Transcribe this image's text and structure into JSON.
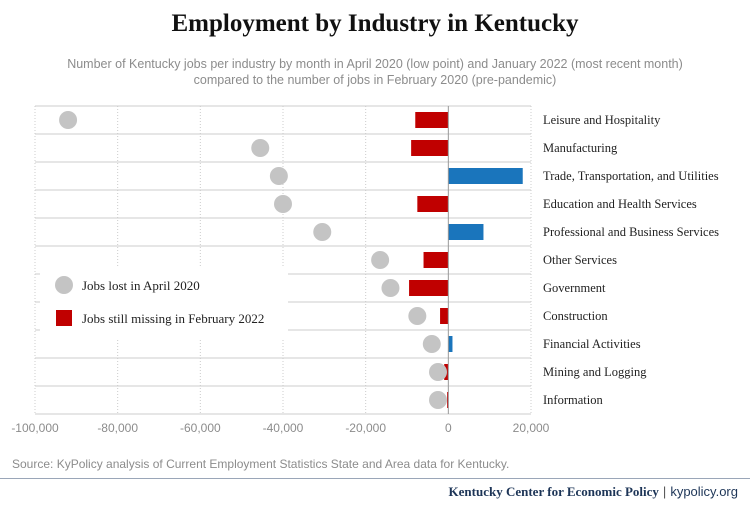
{
  "title": "Employment by Industry in Kentucky",
  "subtitle_line1": "Number of Kentucky jobs per industry by month in April 2020 (low point) and January 2022 (most recent month)",
  "subtitle_line2": "compared to the number of jobs in February 2020 (pre-pandemic)",
  "source": "Source: KyPolicy analysis of Current Employment Statistics State and Area data for Kentucky.",
  "footer": {
    "org": "Kentucky Center for Economic Policy",
    "separator": "|",
    "site": "kypolicy.org"
  },
  "colors": {
    "jobs_lost": "#c4c4c4",
    "missing": "#c00000",
    "gained": "#1a75bc",
    "grid": "#cccccc"
  },
  "chart_data": {
    "type": "bar",
    "orientation": "horizontal",
    "categories": [
      "Leisure and Hospitality",
      "Manufacturing",
      "Trade, Transportation, and Utilities",
      "Education and Health Services",
      "Professional and Business Services",
      "Other Services",
      "Government",
      "Construction",
      "Financial Activities",
      "Mining and Logging",
      "Information"
    ],
    "series": [
      {
        "name": "Jobs lost in April 2020",
        "mark": "point",
        "values": [
          -92000,
          -45500,
          -41000,
          -40000,
          -30500,
          -16500,
          -14000,
          -7500,
          -4000,
          -2500,
          -2500
        ]
      },
      {
        "name": "Jobs still missing in February 2022",
        "mark": "bar",
        "values": [
          -8000,
          -9000,
          18000,
          -7500,
          8500,
          -6000,
          -9500,
          -2000,
          1000,
          -1000,
          -300
        ]
      }
    ],
    "xlim": [
      -100000,
      20000
    ],
    "xticks": [
      -100000,
      -80000,
      -60000,
      -40000,
      -20000,
      0,
      20000
    ],
    "xtick_labels": [
      "-100,000",
      "-80,000",
      "-60,000",
      "-40,000",
      "-20,000",
      "0",
      "20,000"
    ],
    "grid": true,
    "legend_position": "left-middle"
  }
}
